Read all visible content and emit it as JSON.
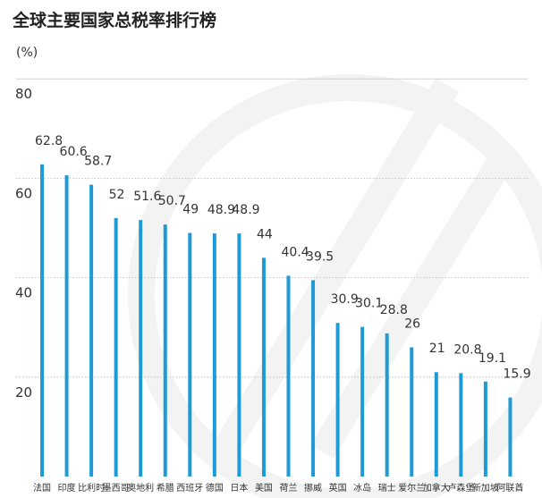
{
  "chart_data": {
    "type": "bar",
    "title": "全球主要国家总税率排行榜",
    "ylabel": "(%)",
    "xlabel": "",
    "ylim": [
      0,
      80
    ],
    "yticks": [
      20,
      40,
      60,
      80
    ],
    "grid": true,
    "categories": [
      "法国",
      "印度",
      "比利时",
      "墨西哥",
      "奥地利",
      "希腊",
      "西班牙",
      "德国",
      "日本",
      "美国",
      "荷兰",
      "挪威",
      "英国",
      "冰岛",
      "瑞士",
      "爱尔兰",
      "加拿大",
      "卢森堡",
      "新加坡",
      "阿联酋"
    ],
    "values": [
      62.8,
      60.6,
      58.7,
      52,
      51.6,
      50.7,
      49,
      48.9,
      48.9,
      44,
      40.4,
      39.5,
      30.9,
      30.1,
      28.8,
      26,
      21,
      20.8,
      19.1,
      15.9
    ],
    "value_labels": [
      "62.8",
      "60.6",
      "58.7",
      "52",
      "51.6",
      "50.7",
      "49",
      "48.9",
      "48.9",
      "44",
      "40.4",
      "39.5",
      "30.9",
      "30.1",
      "28.8",
      "26",
      "21",
      "20.8",
      "19.1",
      "15.9"
    ],
    "bar_color": "#1e9ad6"
  }
}
